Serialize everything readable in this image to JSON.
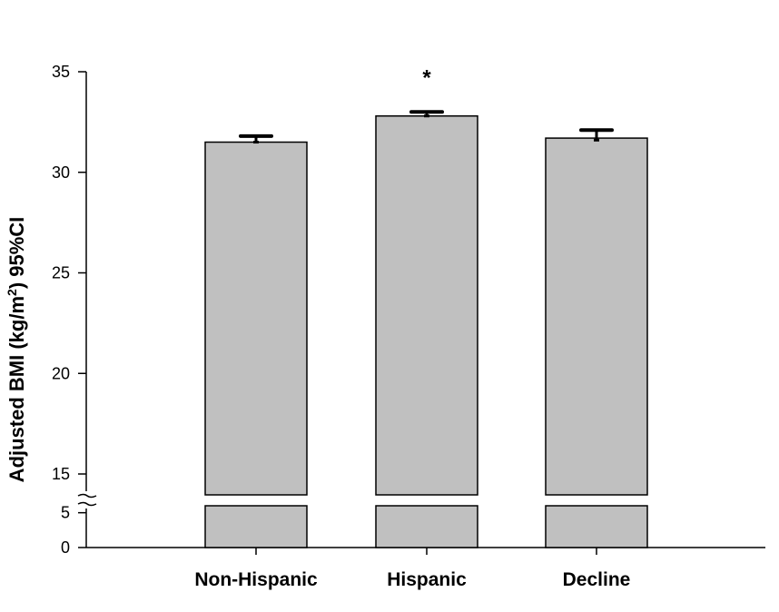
{
  "chart_data": {
    "type": "bar",
    "categories": [
      "Non-Hispanic",
      "Hispanic",
      "Decline"
    ],
    "values": [
      31.5,
      32.8,
      31.7
    ],
    "error_upper": [
      31.8,
      33.0,
      32.1
    ],
    "error_lower": [
      31.5,
      32.8,
      31.6
    ],
    "significance": [
      "",
      "*",
      ""
    ],
    "ylabel_parts": [
      "Adjusted BMI (kg/m",
      "2",
      ") 95%CI"
    ],
    "ylim": [
      0,
      35
    ],
    "axis_break": [
      6,
      15
    ],
    "yticks_lower": [
      0,
      5
    ],
    "yticks_upper": [
      15,
      20,
      25,
      30,
      35
    ],
    "bar_color": "#c0c0c0",
    "edge_color": "#000000",
    "grid": false,
    "legend": "none"
  }
}
